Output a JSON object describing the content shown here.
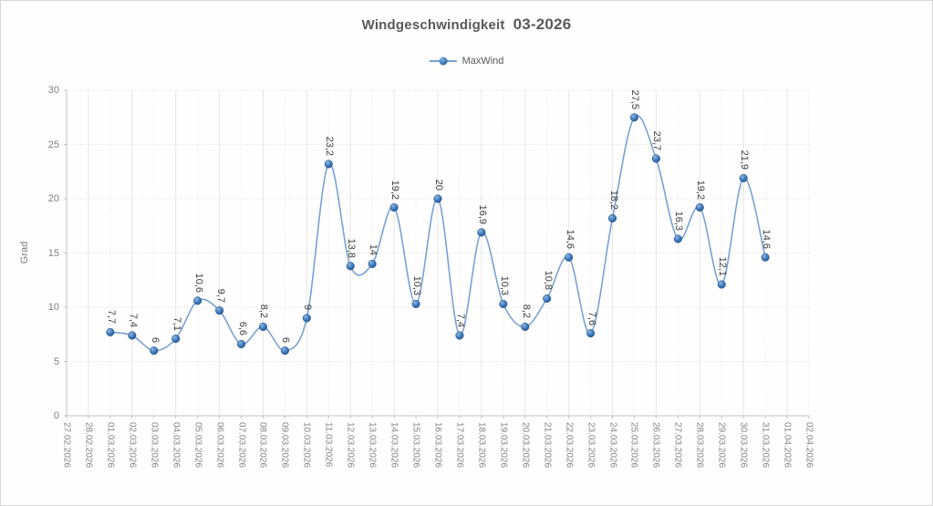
{
  "window": {
    "background_color": "#fefefe",
    "border_color": "#d6d6d6"
  },
  "chart_data": {
    "type": "line",
    "title": "Windgeschwindigkeit  03-2026",
    "title_parts": {
      "main": "Windgeschwindigkeit",
      "period": "03-2026"
    },
    "legend_position": "top",
    "ylabel": "Grad",
    "xlabel": "",
    "ylim": [
      0,
      30
    ],
    "ytick_step": 5,
    "ytick_labels": [
      "0",
      "5",
      "10",
      "15",
      "20",
      "25",
      "30"
    ],
    "grid": true,
    "categories": [
      "27.02.2026",
      "28.02.2026",
      "01.03.2026",
      "02.03.2026",
      "03.03.2026",
      "04.03.2026",
      "05.03.2026",
      "06.03.2026",
      "07.03.2026",
      "08.03.2026",
      "09.03.2026",
      "10.03.2026",
      "11.03.2026",
      "12.03.2026",
      "13.03.2026",
      "14.03.2026",
      "15.03.2026",
      "16.03.2026",
      "17.03.2026",
      "18.03.2026",
      "19.03.2026",
      "20.03.2026",
      "21.03.2026",
      "22.03.2026",
      "23.03.2026",
      "24.03.2026",
      "25.03.2026",
      "26.03.2026",
      "27.03.2026",
      "28.03.2026",
      "29.03.2026",
      "30.03.2026",
      "31.03.2026",
      "01.04.2026",
      "02.04.2026"
    ],
    "series": [
      {
        "name": "MaxWind",
        "first_category_index": 2,
        "values": [
          7.7,
          7.4,
          6,
          7.1,
          10.6,
          9.7,
          6.6,
          8.2,
          6,
          9,
          23.2,
          13.8,
          14,
          19.2,
          10.3,
          20,
          7.4,
          16.9,
          10.3,
          8.2,
          10.8,
          14.6,
          7.6,
          18.2,
          27.5,
          23.7,
          16.3,
          19.2,
          12.1,
          21.9,
          14.6
        ],
        "labels": [
          "7,7",
          "7,4",
          "6",
          "7,1",
          "10,6",
          "9,7",
          "6,6",
          "8,2",
          "6",
          "9",
          "23,2",
          "13,8",
          "14",
          "19,2",
          "10,3",
          "20",
          "7,4",
          "16,9",
          "10,3",
          "8,2",
          "10,8",
          "14,6",
          "7,6",
          "18,2",
          "27,5",
          "23,7",
          "16,3",
          "19,2",
          "12,1",
          "21,9",
          "14,6"
        ]
      }
    ],
    "colors": {
      "line": "#7ba1d3",
      "marker_fill": "#3a76b8",
      "marker_highlight": "#8db6e2",
      "marker_edge": "#255087",
      "title_text": "#595959",
      "tick_text": "#7f7f7f",
      "data_label_text": "#3f3f3f",
      "grid_major_h": "#dedede",
      "grid_major_v": "#e6e6e6",
      "axis_line": "#c3c3c3"
    }
  }
}
